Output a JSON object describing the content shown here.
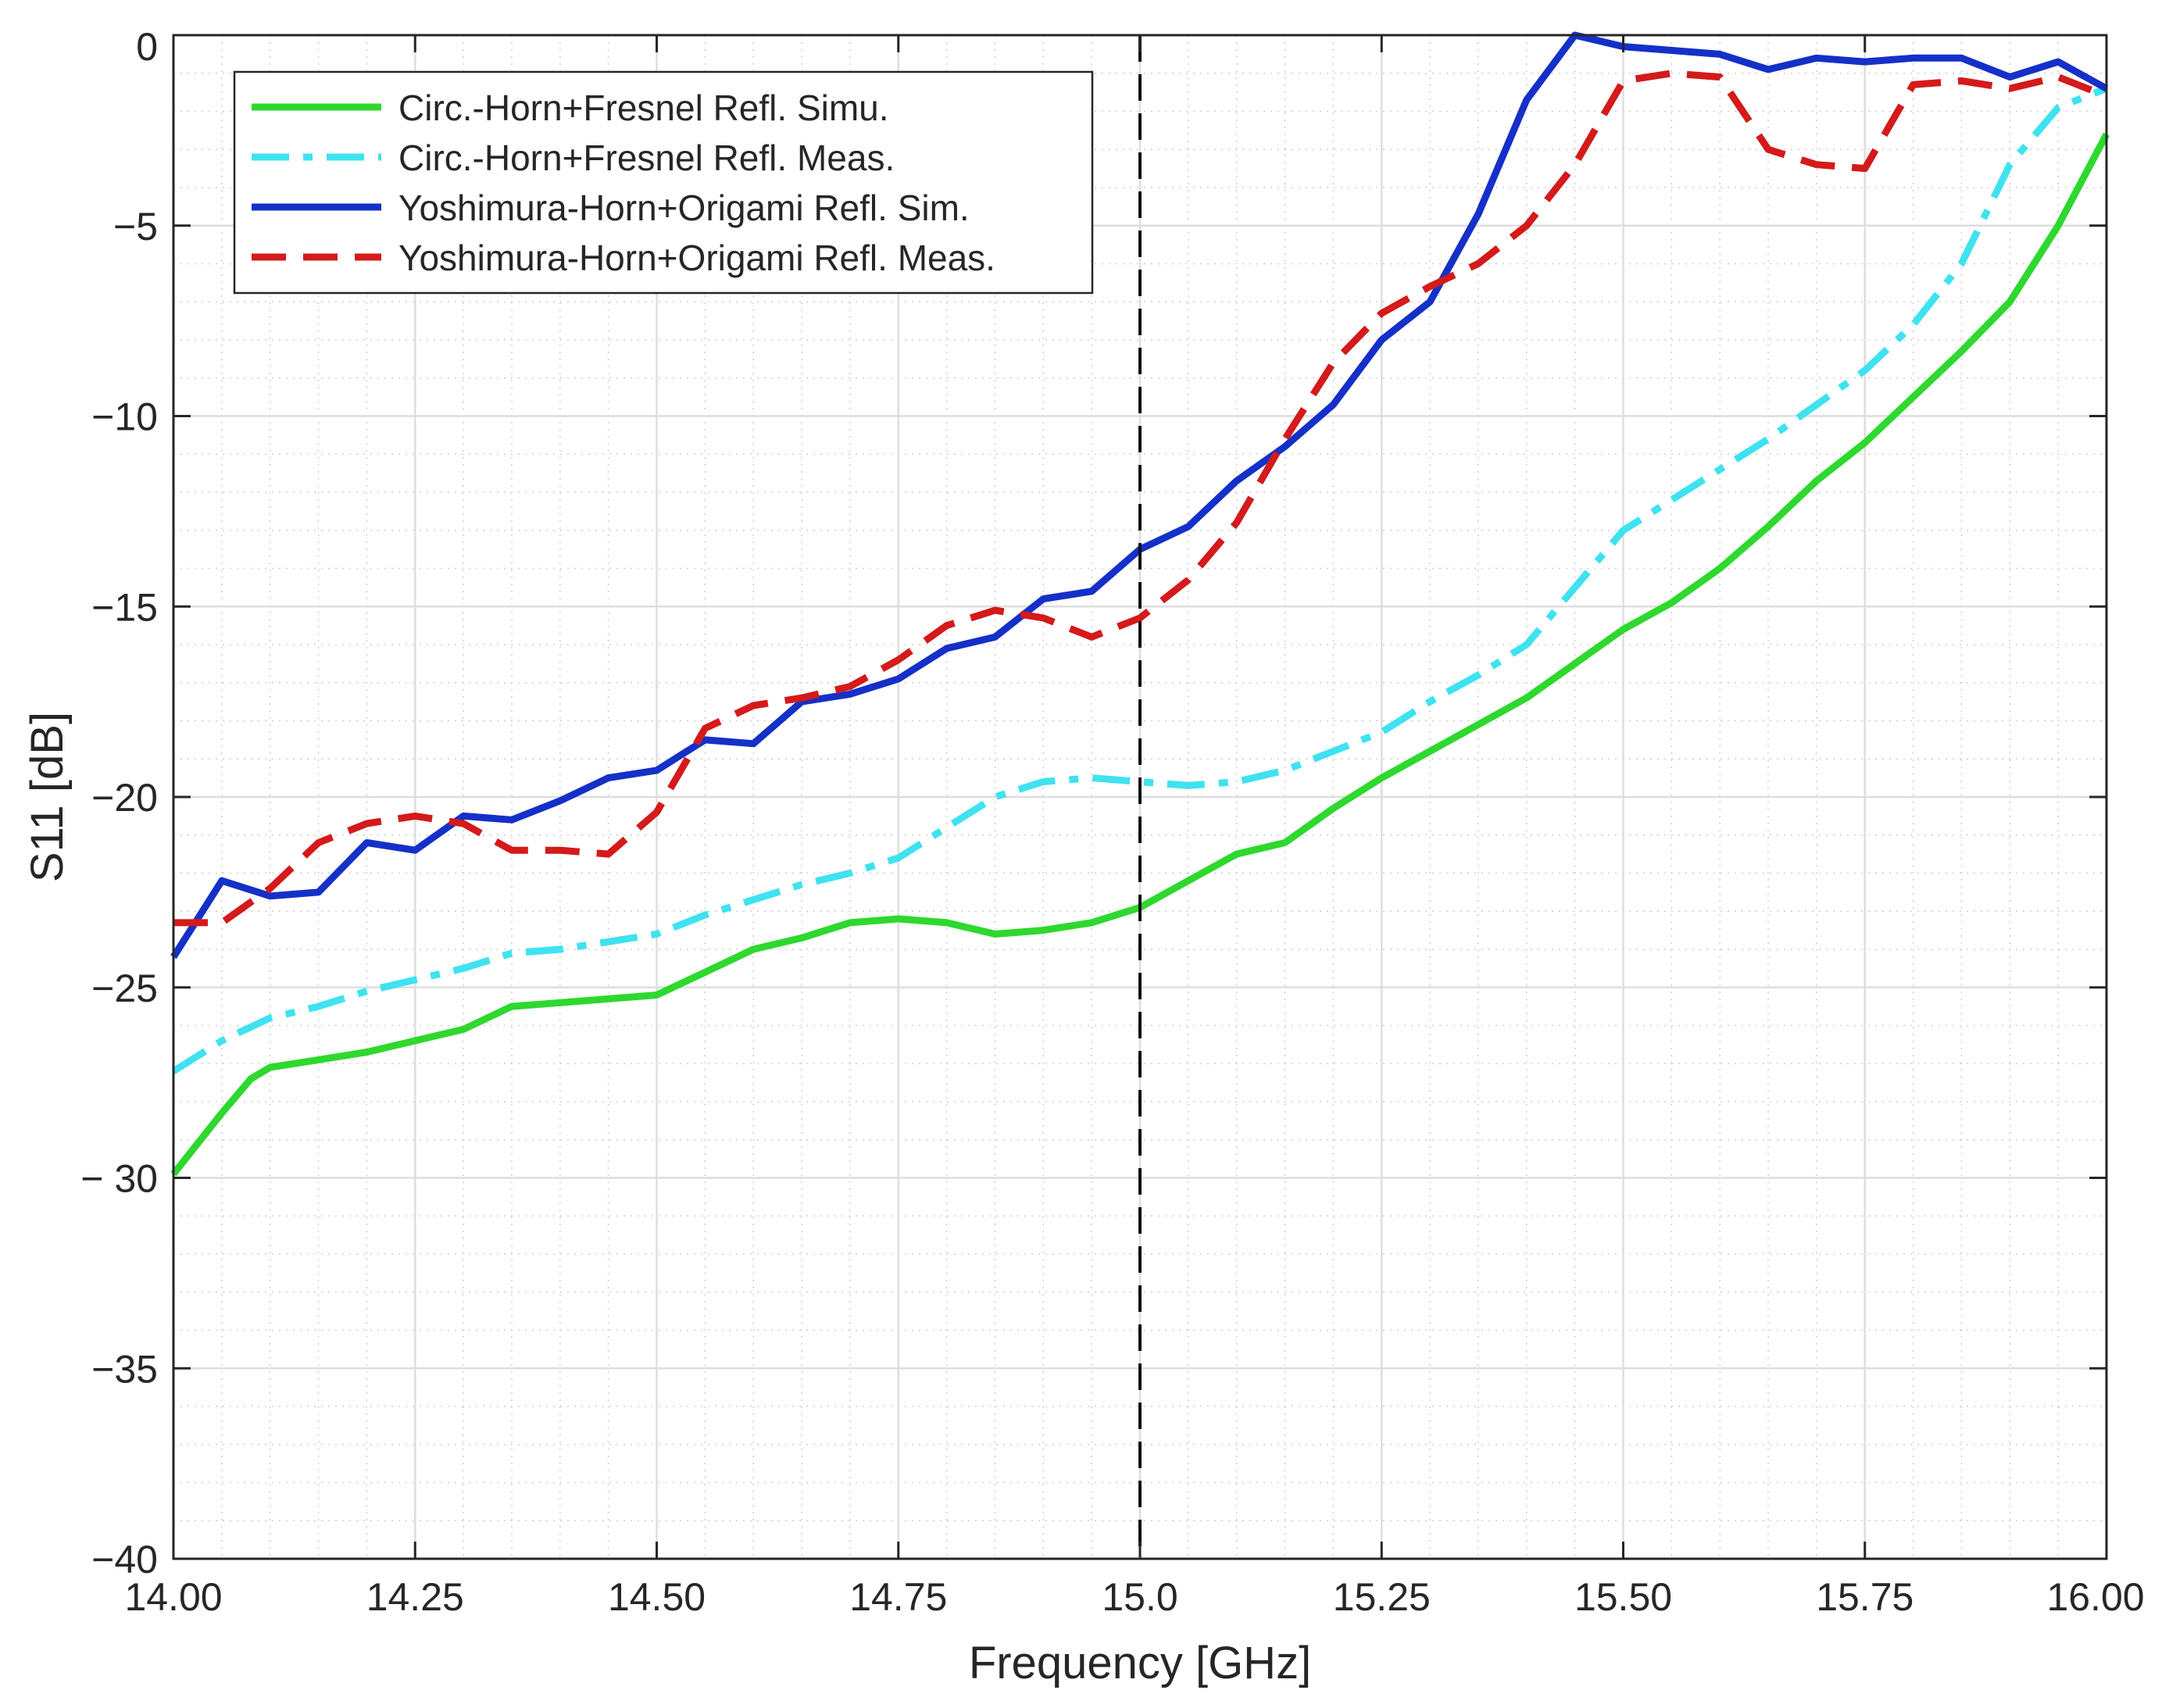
{
  "chart_data": {
    "type": "line",
    "xlabel": "Frequency [GHz]",
    "ylabel": "S11 [dB]",
    "xlim": [
      14.0,
      16.0
    ],
    "ylim": [
      -40,
      0
    ],
    "x_ticks": [
      14.0,
      14.25,
      14.5,
      14.75,
      15.0,
      15.25,
      15.5,
      15.75,
      16.0
    ],
    "x_tick_labels": [
      "14.00",
      "14.25",
      "14.50",
      "14.75",
      "15.0",
      "15.25",
      "15.50",
      "15.75",
      "16.00"
    ],
    "y_ticks": [
      0,
      -5,
      -10,
      -15,
      -20,
      -25,
      -30,
      -35,
      -40
    ],
    "y_tick_labels": [
      "0",
      "−5",
      "−10",
      "−15",
      "−20",
      "−25",
      "− 30",
      "−35",
      "−40"
    ],
    "grid": true,
    "minor_grid": true,
    "legend_position": "top-left",
    "reference_line": {
      "x": 15.0,
      "style": "dashed",
      "color": "#111111"
    },
    "series": [
      {
        "name": "Circ.-Horn+Fresnel Refl. Simu.",
        "color": "#2ed82e",
        "dash": "solid",
        "x": [
          14.0,
          14.05,
          14.08,
          14.1,
          14.15,
          14.2,
          14.25,
          14.3,
          14.35,
          14.4,
          14.45,
          14.5,
          14.55,
          14.6,
          14.65,
          14.7,
          14.75,
          14.8,
          14.85,
          14.9,
          14.95,
          15.0,
          15.05,
          15.1,
          15.15,
          15.2,
          15.25,
          15.3,
          15.35,
          15.4,
          15.45,
          15.5,
          15.55,
          15.6,
          15.65,
          15.7,
          15.75,
          15.8,
          15.85,
          15.9,
          15.95,
          16.0
        ],
        "y": [
          -29.9,
          -28.3,
          -27.4,
          -27.1,
          -26.9,
          -26.7,
          -26.4,
          -26.1,
          -25.5,
          -25.4,
          -25.3,
          -25.2,
          -24.6,
          -24.0,
          -23.7,
          -23.3,
          -23.2,
          -23.3,
          -23.6,
          -23.5,
          -23.3,
          -22.9,
          -22.2,
          -21.5,
          -21.2,
          -20.3,
          -19.5,
          -18.8,
          -18.1,
          -17.4,
          -16.5,
          -15.6,
          -14.9,
          -14.0,
          -12.9,
          -11.7,
          -10.7,
          -9.5,
          -8.3,
          -7.0,
          -5.0,
          -2.6
        ]
      },
      {
        "name": "Circ.-Horn+Fresnel Refl. Meas.",
        "color": "#3fe2f0",
        "dash": "dashdot",
        "x": [
          14.0,
          14.05,
          14.1,
          14.15,
          14.2,
          14.25,
          14.3,
          14.35,
          14.4,
          14.45,
          14.5,
          14.55,
          14.6,
          14.65,
          14.7,
          14.75,
          14.8,
          14.85,
          14.9,
          14.95,
          15.0,
          15.05,
          15.1,
          15.15,
          15.2,
          15.25,
          15.3,
          15.35,
          15.4,
          15.45,
          15.5,
          15.55,
          15.6,
          15.65,
          15.7,
          15.75,
          15.8,
          15.85,
          15.9,
          15.95,
          16.0
        ],
        "y": [
          -27.2,
          -26.4,
          -25.8,
          -25.5,
          -25.1,
          -24.8,
          -24.5,
          -24.1,
          -24.0,
          -23.8,
          -23.6,
          -23.1,
          -22.7,
          -22.3,
          -22.0,
          -21.6,
          -20.8,
          -20.0,
          -19.6,
          -19.5,
          -19.6,
          -19.7,
          -19.6,
          -19.3,
          -18.8,
          -18.3,
          -17.5,
          -16.8,
          -16.0,
          -14.5,
          -13.0,
          -12.2,
          -11.4,
          -10.6,
          -9.7,
          -8.8,
          -7.6,
          -6.0,
          -3.4,
          -1.9,
          -1.4
        ]
      },
      {
        "name": "Yoshimura-Horn+Origami Refl. Sim.",
        "color": "#1530c8",
        "dash": "solid",
        "x": [
          14.0,
          14.05,
          14.1,
          14.15,
          14.2,
          14.25,
          14.3,
          14.35,
          14.4,
          14.45,
          14.5,
          14.55,
          14.6,
          14.65,
          14.7,
          14.75,
          14.8,
          14.85,
          14.9,
          14.95,
          15.0,
          15.05,
          15.1,
          15.15,
          15.2,
          15.25,
          15.3,
          15.35,
          15.4,
          15.45,
          15.5,
          15.55,
          15.6,
          15.65,
          15.7,
          15.75,
          15.8,
          15.85,
          15.9,
          15.95,
          16.0
        ],
        "y": [
          -24.2,
          -22.2,
          -22.6,
          -22.5,
          -21.2,
          -21.4,
          -20.5,
          -20.6,
          -20.1,
          -19.5,
          -19.3,
          -18.5,
          -18.6,
          -17.5,
          -17.3,
          -16.9,
          -16.1,
          -15.8,
          -14.8,
          -14.6,
          -13.5,
          -12.9,
          -11.7,
          -10.8,
          -9.7,
          -8.0,
          -7.0,
          -4.7,
          -1.7,
          0.0,
          -0.3,
          -0.4,
          -0.5,
          -0.9,
          -0.6,
          -0.7,
          -0.6,
          -0.6,
          -1.1,
          -0.7,
          -1.4
        ]
      },
      {
        "name": "Yoshimura-Horn+Origami Refl. Meas.",
        "color": "#d41a1a",
        "dash": "dashed",
        "x": [
          14.0,
          14.05,
          14.1,
          14.15,
          14.2,
          14.25,
          14.3,
          14.35,
          14.4,
          14.45,
          14.5,
          14.55,
          14.6,
          14.65,
          14.7,
          14.75,
          14.8,
          14.85,
          14.9,
          14.95,
          15.0,
          15.05,
          15.1,
          15.15,
          15.2,
          15.25,
          15.3,
          15.35,
          15.4,
          15.45,
          15.5,
          15.55,
          15.6,
          15.65,
          15.7,
          15.75,
          15.8,
          15.85,
          15.9,
          15.95,
          16.0
        ],
        "y": [
          -23.3,
          -23.3,
          -22.4,
          -21.2,
          -20.7,
          -20.5,
          -20.7,
          -21.4,
          -21.4,
          -21.5,
          -20.4,
          -18.2,
          -17.6,
          -17.4,
          -17.1,
          -16.4,
          -15.5,
          -15.1,
          -15.3,
          -15.8,
          -15.3,
          -14.3,
          -12.8,
          -10.6,
          -8.6,
          -7.3,
          -6.6,
          -6.0,
          -5.0,
          -3.4,
          -1.2,
          -1.0,
          -1.1,
          -3.0,
          -3.4,
          -3.5,
          -1.3,
          -1.2,
          -1.4,
          -1.1,
          -1.6
        ]
      }
    ]
  }
}
